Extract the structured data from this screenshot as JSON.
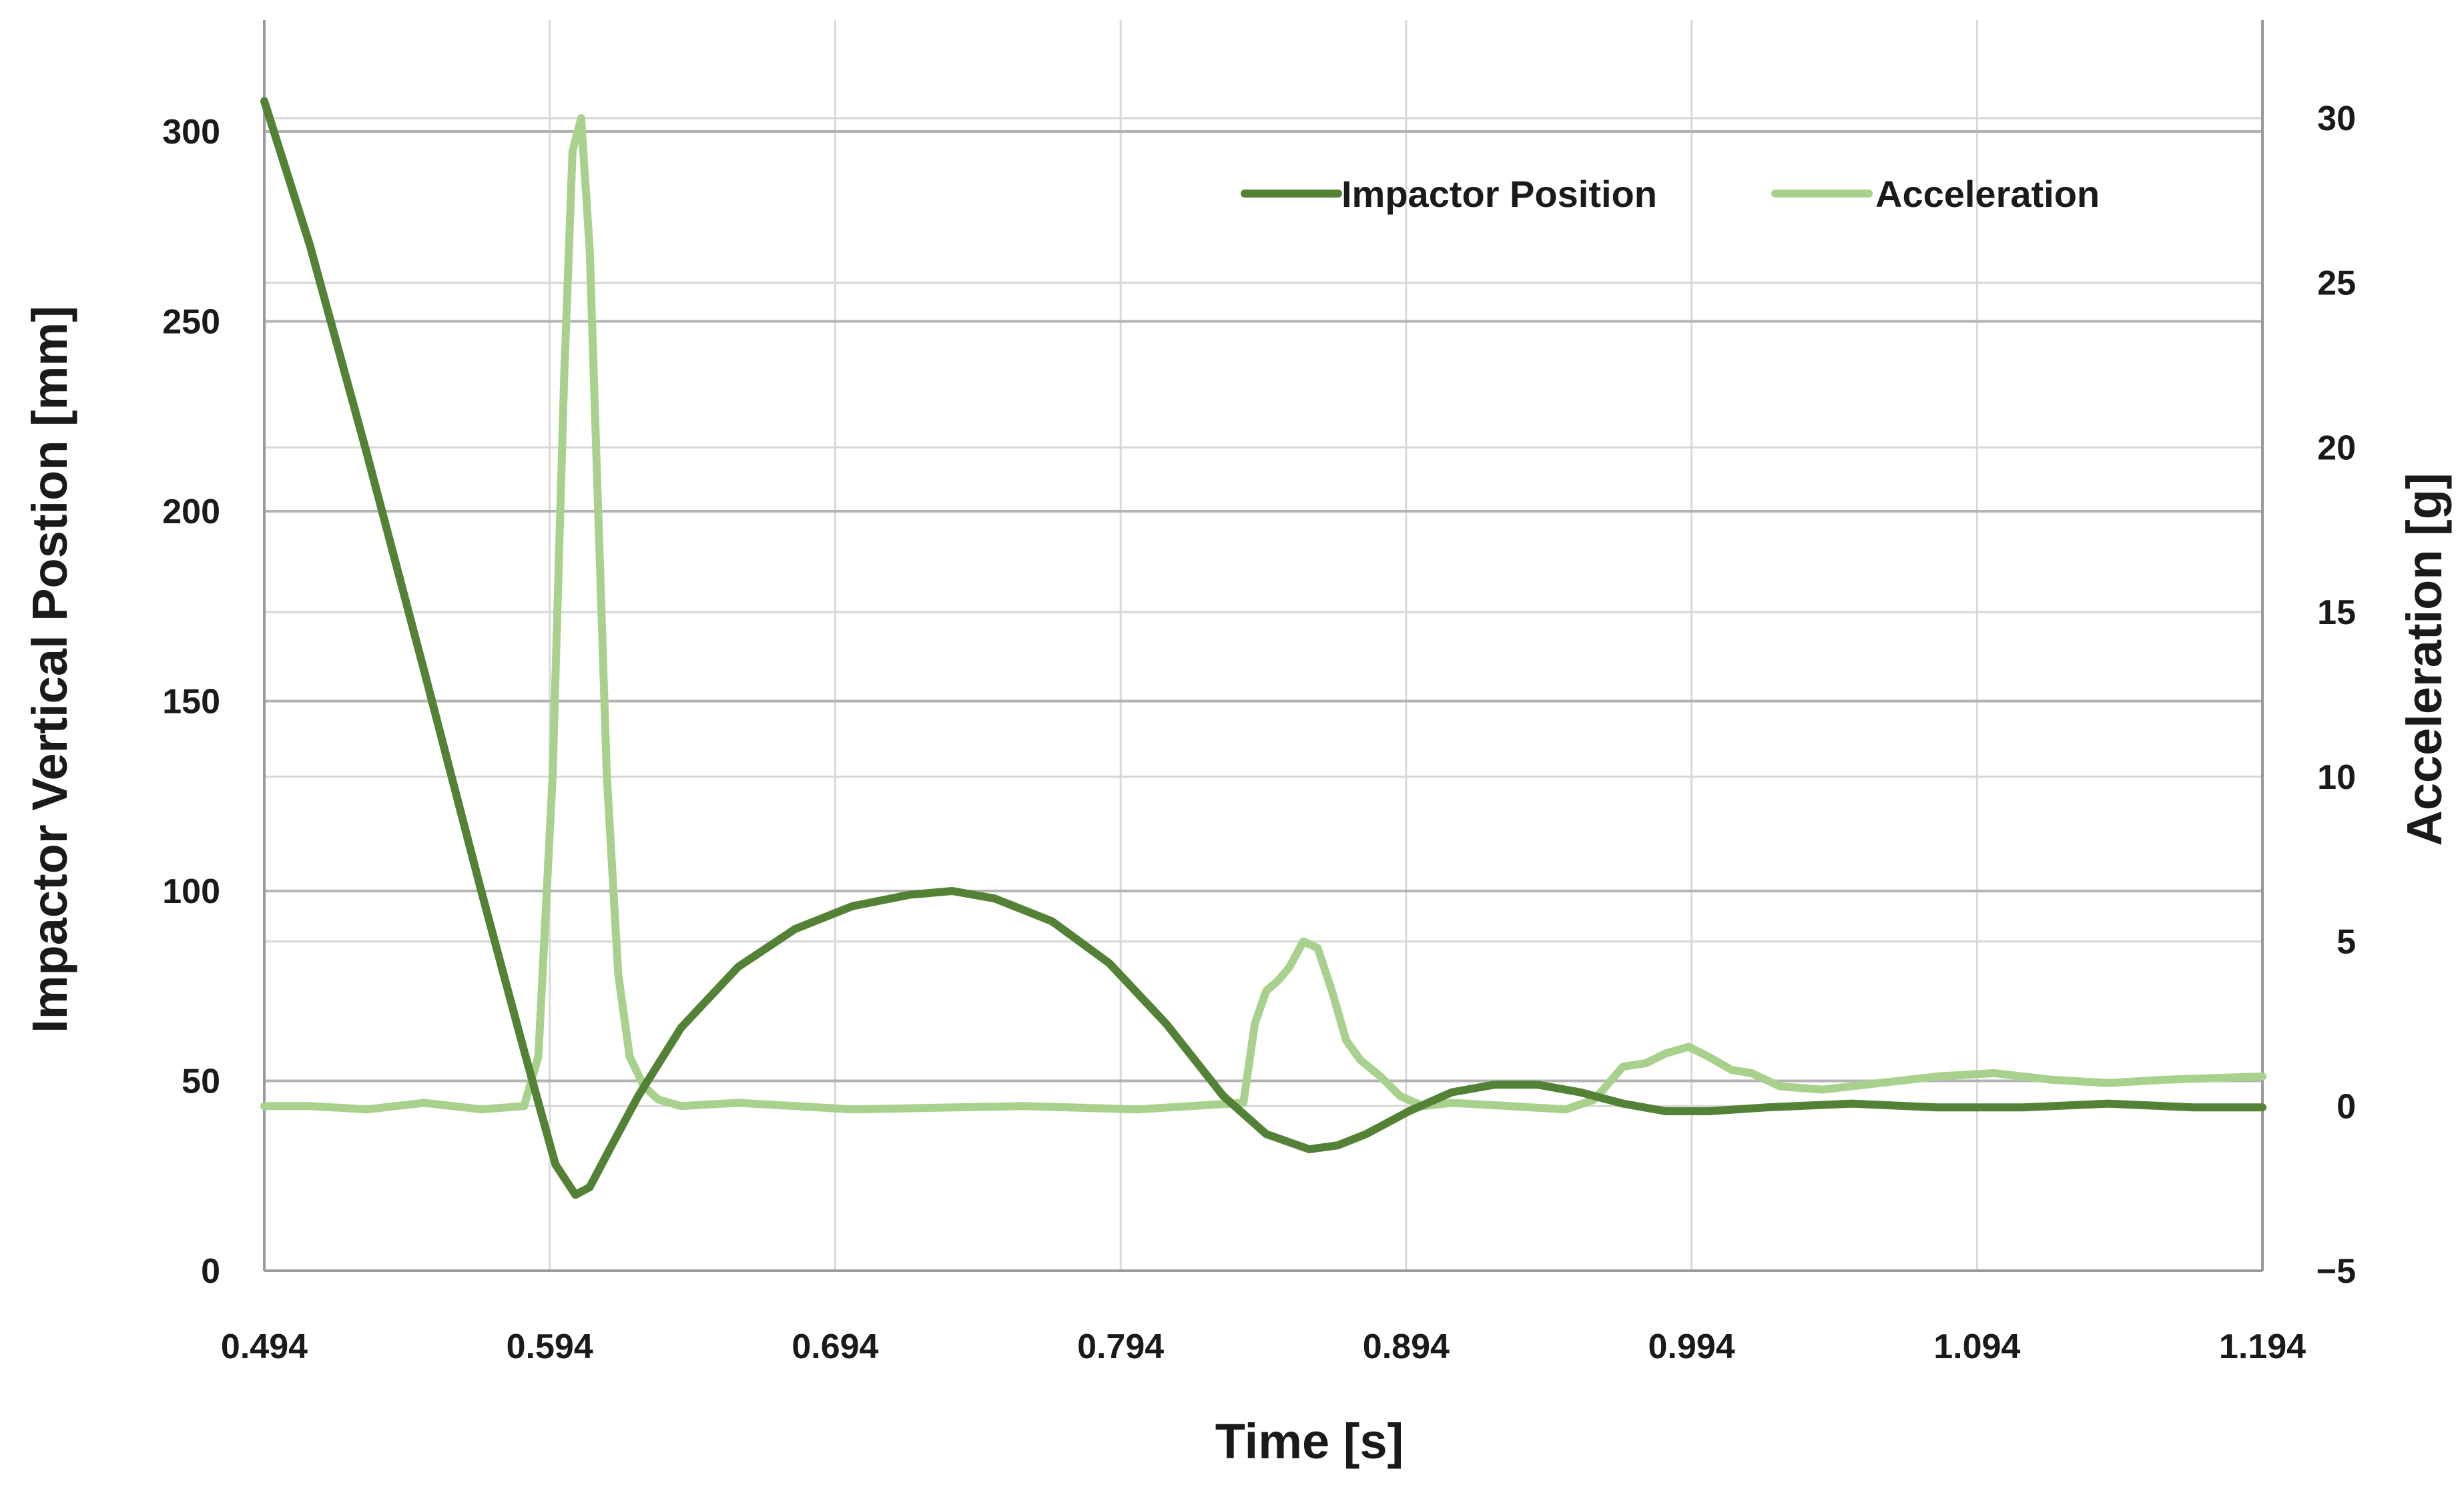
{
  "chart_data": {
    "type": "line",
    "title": "",
    "xlabel": "Time [s]",
    "ylabel": "Impactor Vertical Postion [mm]",
    "y2label": "Acceleration [g]",
    "xlim": [
      0.494,
      1.194
    ],
    "ylim": [
      0,
      300
    ],
    "y2lim": [
      -5,
      30
    ],
    "x_ticks": [
      "0.494",
      "0.594",
      "0.694",
      "0.794",
      "0.894",
      "0.994",
      "1.094",
      "1.194"
    ],
    "y_ticks": [
      "0",
      "50",
      "100",
      "150",
      "200",
      "250",
      "300"
    ],
    "y2_ticks": [
      "−5",
      "0",
      "5",
      "10",
      "15",
      "20",
      "25",
      "30"
    ],
    "grid": true,
    "legend_position": "top-right",
    "series": [
      {
        "name": "Impactor Position",
        "axis": "left",
        "color": "#538135",
        "x": [
          0.494,
          0.51,
          0.53,
          0.55,
          0.57,
          0.585,
          0.596,
          0.603,
          0.608,
          0.615,
          0.625,
          0.64,
          0.66,
          0.68,
          0.7,
          0.72,
          0.735,
          0.75,
          0.77,
          0.79,
          0.81,
          0.83,
          0.845,
          0.86,
          0.87,
          0.88,
          0.895,
          0.91,
          0.925,
          0.94,
          0.955,
          0.97,
          0.985,
          1.0,
          1.02,
          1.05,
          1.08,
          1.11,
          1.14,
          1.17,
          1.194
        ],
        "y": [
          308,
          270,
          215,
          158,
          100,
          58,
          28,
          20,
          22,
          32,
          46,
          64,
          80,
          90,
          96,
          99,
          100,
          98,
          92,
          81,
          65,
          46,
          36,
          32,
          33,
          36,
          42,
          47,
          49,
          49,
          47,
          44,
          42,
          42,
          43,
          44,
          43,
          43,
          44,
          43,
          43
        ]
      },
      {
        "name": "Acceleration",
        "axis": "right",
        "color": "#a9d18e",
        "x": [
          0.494,
          0.51,
          0.53,
          0.55,
          0.57,
          0.585,
          0.59,
          0.595,
          0.599,
          0.602,
          0.605,
          0.608,
          0.611,
          0.614,
          0.618,
          0.622,
          0.627,
          0.632,
          0.64,
          0.66,
          0.7,
          0.76,
          0.8,
          0.837,
          0.841,
          0.845,
          0.849,
          0.853,
          0.858,
          0.863,
          0.868,
          0.873,
          0.878,
          0.885,
          0.892,
          0.9,
          0.91,
          0.93,
          0.95,
          0.96,
          0.965,
          0.97,
          0.978,
          0.985,
          0.993,
          1.0,
          1.008,
          1.015,
          1.025,
          1.04,
          1.06,
          1.08,
          1.1,
          1.12,
          1.14,
          1.16,
          1.194
        ],
        "y": [
          0,
          0,
          -0.1,
          0.1,
          -0.1,
          0,
          1.5,
          10,
          22,
          29,
          30,
          26,
          18,
          10,
          4,
          1.5,
          0.6,
          0.2,
          0,
          0.1,
          -0.1,
          0,
          -0.1,
          0.1,
          2.5,
          3.5,
          3.8,
          4.2,
          5,
          4.8,
          3.5,
          2,
          1.4,
          0.9,
          0.3,
          0,
          0.1,
          0,
          -0.1,
          0.2,
          0.7,
          1.2,
          1.3,
          1.6,
          1.8,
          1.5,
          1.1,
          1.0,
          0.6,
          0.5,
          0.7,
          0.9,
          1.0,
          0.8,
          0.7,
          0.8,
          0.9
        ]
      }
    ]
  }
}
